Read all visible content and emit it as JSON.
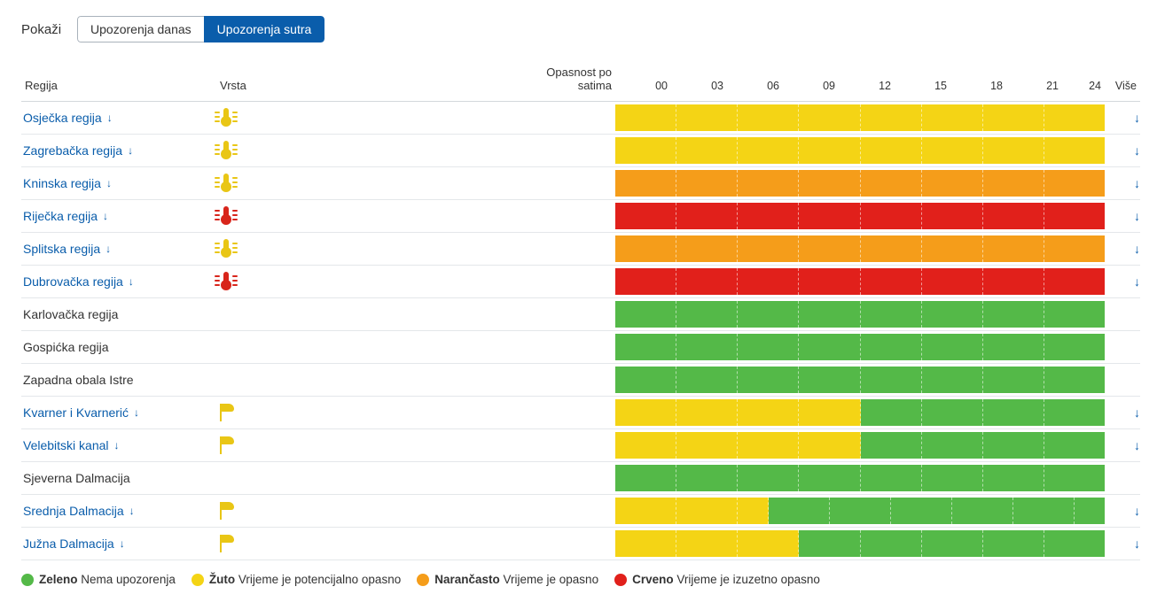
{
  "colors": {
    "green": "#54b948",
    "yellow": "#f4d415",
    "orange": "#f59d1a",
    "red": "#e1201b",
    "yellow_icon": "#e9c615",
    "red_icon": "#d8251b",
    "link": "#0a5dab"
  },
  "topbar": {
    "show_label": "Pokaži",
    "tab_today": "Upozorenja danas",
    "tab_tomorrow": "Upozorenja sutra",
    "active_tab": 1
  },
  "headers": {
    "region": "Regija",
    "type": "Vrsta",
    "danger_by_hour": "Opasnost po satima",
    "more": "Više",
    "hours": [
      "00",
      "03",
      "06",
      "09",
      "12",
      "15",
      "18",
      "21",
      "24"
    ]
  },
  "legend": [
    {
      "key": "green",
      "title": "Zeleno",
      "text": "Nema upozorenja"
    },
    {
      "key": "yellow",
      "title": "Žuto",
      "text": "Vrijeme je potencijalno opasno"
    },
    {
      "key": "orange",
      "title": "Narančasto",
      "text": "Vrijeme je opasno"
    },
    {
      "key": "red",
      "title": "Crveno",
      "text": "Vrijeme je izuzetno opasno"
    }
  ],
  "rows": [
    {
      "region": "Osječka regija",
      "is_link": true,
      "icon": "heat-yellow",
      "bars": [
        [
          "yellow",
          8
        ]
      ],
      "more": true
    },
    {
      "region": "Zagrebačka regija",
      "is_link": true,
      "icon": "heat-yellow",
      "bars": [
        [
          "yellow",
          8
        ]
      ],
      "more": true
    },
    {
      "region": "Kninska regija",
      "is_link": true,
      "icon": "heat-yellow",
      "bars": [
        [
          "orange",
          8
        ]
      ],
      "more": true
    },
    {
      "region": "Riječka regija",
      "is_link": true,
      "icon": "heat-red",
      "bars": [
        [
          "red",
          8
        ]
      ],
      "more": true
    },
    {
      "region": "Splitska regija",
      "is_link": true,
      "icon": "heat-yellow",
      "bars": [
        [
          "orange",
          8
        ]
      ],
      "more": true
    },
    {
      "region": "Dubrovačka regija",
      "is_link": true,
      "icon": "heat-red",
      "bars": [
        [
          "red",
          8
        ]
      ],
      "more": true
    },
    {
      "region": "Karlovačka regija",
      "is_link": false,
      "icon": null,
      "bars": [
        [
          "green",
          8
        ]
      ],
      "more": false
    },
    {
      "region": "Gospićka regija",
      "is_link": false,
      "icon": null,
      "bars": [
        [
          "green",
          8
        ]
      ],
      "more": false
    },
    {
      "region": "Zapadna obala Istre",
      "is_link": false,
      "icon": null,
      "bars": [
        [
          "green",
          8
        ]
      ],
      "more": false
    },
    {
      "region": "Kvarner i Kvarnerić",
      "is_link": true,
      "icon": "wind-yellow",
      "bars": [
        [
          "yellow",
          4
        ],
        [
          "green",
          4
        ]
      ],
      "more": true
    },
    {
      "region": "Velebitski kanal",
      "is_link": true,
      "icon": "wind-yellow",
      "bars": [
        [
          "yellow",
          4
        ],
        [
          "green",
          4
        ]
      ],
      "more": true
    },
    {
      "region": "Sjeverna Dalmacija",
      "is_link": false,
      "icon": null,
      "bars": [
        [
          "green",
          8
        ]
      ],
      "more": false
    },
    {
      "region": "Srednja Dalmacija",
      "is_link": true,
      "icon": "wind-yellow",
      "bars": [
        [
          "yellow",
          2.5
        ],
        [
          "green",
          5.5
        ]
      ],
      "more": true
    },
    {
      "region": "Južna Dalmacija",
      "is_link": true,
      "icon": "wind-yellow",
      "bars": [
        [
          "yellow",
          3
        ],
        [
          "green",
          5
        ]
      ],
      "more": true
    }
  ]
}
